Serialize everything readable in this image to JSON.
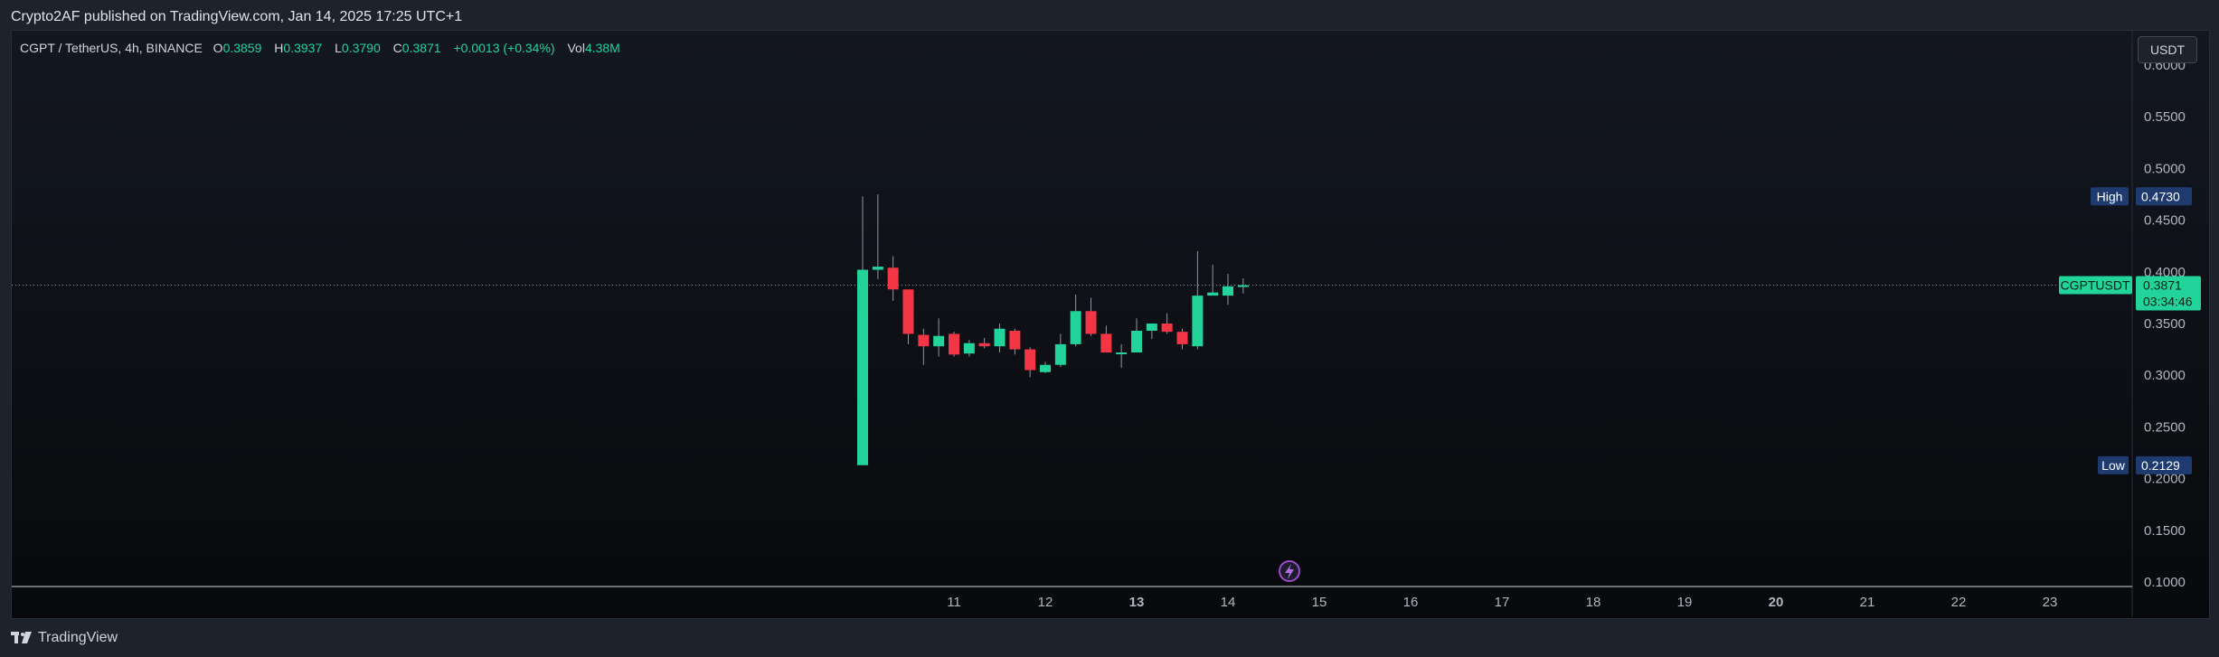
{
  "header": {
    "published": "Crypto2AF published on TradingView.com, Jan 14, 2025 17:25 UTC+1"
  },
  "legend": {
    "symbol": "CGPT / TetherUS, 4h, BINANCE",
    "o_label": "O",
    "o_value": "0.3859",
    "h_label": "H",
    "h_value": "0.3937",
    "l_label": "L",
    "l_value": "0.3790",
    "c_label": "C",
    "c_value": "0.3871",
    "change": "+0.0013 (+0.34%)",
    "vol_label": "Vol",
    "vol_value": "4.38M"
  },
  "currency_button": "USDT",
  "footer": {
    "brand": "TradingView"
  },
  "colors": {
    "up": "#22d39a",
    "down": "#f23645",
    "axis_line": "#ffffff",
    "tag_blue": "#1e3a6e"
  },
  "chart_data": {
    "type": "candlestick",
    "price_axis": {
      "ticks": [
        "0.6000",
        "0.5500",
        "0.5000",
        "0.4500",
        "0.4000",
        "0.3500",
        "0.3000",
        "0.2500",
        "0.2000",
        "0.1500",
        "0.1000"
      ],
      "ylim": [
        0.1,
        0.6
      ]
    },
    "time_axis": {
      "labels": [
        "11",
        "12",
        "13",
        "14",
        "15",
        "16",
        "17",
        "18",
        "19",
        "20",
        "21",
        "22",
        "23"
      ],
      "bold_labels": [
        "13",
        "20"
      ]
    },
    "markers": {
      "high": {
        "label": "High",
        "value": "0.4730"
      },
      "low": {
        "label": "Low",
        "value": "0.2129"
      },
      "last": {
        "symbol": "CGPTUSDT",
        "value": "0.3871",
        "countdown": "03:34:46"
      }
    },
    "candles": [
      {
        "t": 10.0,
        "o": 0.213,
        "h": 0.473,
        "l": 0.213,
        "c": 0.402
      },
      {
        "t": 10.167,
        "o": 0.402,
        "h": 0.475,
        "l": 0.393,
        "c": 0.405
      },
      {
        "t": 10.333,
        "o": 0.404,
        "h": 0.415,
        "l": 0.372,
        "c": 0.383
      },
      {
        "t": 10.5,
        "o": 0.383,
        "h": 0.383,
        "l": 0.33,
        "c": 0.34
      },
      {
        "t": 10.667,
        "o": 0.339,
        "h": 0.345,
        "l": 0.31,
        "c": 0.328
      },
      {
        "t": 10.833,
        "o": 0.328,
        "h": 0.355,
        "l": 0.318,
        "c": 0.338
      },
      {
        "t": 11.0,
        "o": 0.34,
        "h": 0.342,
        "l": 0.318,
        "c": 0.32
      },
      {
        "t": 11.167,
        "o": 0.321,
        "h": 0.334,
        "l": 0.318,
        "c": 0.331
      },
      {
        "t": 11.333,
        "o": 0.331,
        "h": 0.336,
        "l": 0.326,
        "c": 0.328
      },
      {
        "t": 11.5,
        "o": 0.328,
        "h": 0.35,
        "l": 0.322,
        "c": 0.345
      },
      {
        "t": 11.667,
        "o": 0.343,
        "h": 0.345,
        "l": 0.32,
        "c": 0.325
      },
      {
        "t": 11.833,
        "o": 0.325,
        "h": 0.327,
        "l": 0.298,
        "c": 0.305
      },
      {
        "t": 12.0,
        "o": 0.303,
        "h": 0.313,
        "l": 0.302,
        "c": 0.31
      },
      {
        "t": 12.167,
        "o": 0.31,
        "h": 0.34,
        "l": 0.308,
        "c": 0.33
      },
      {
        "t": 12.333,
        "o": 0.33,
        "h": 0.378,
        "l": 0.328,
        "c": 0.362
      },
      {
        "t": 12.5,
        "o": 0.362,
        "h": 0.375,
        "l": 0.338,
        "c": 0.34
      },
      {
        "t": 12.667,
        "o": 0.34,
        "h": 0.348,
        "l": 0.322,
        "c": 0.322
      },
      {
        "t": 12.833,
        "o": 0.322,
        "h": 0.33,
        "l": 0.307,
        "c": 0.322
      },
      {
        "t": 13.0,
        "o": 0.322,
        "h": 0.355,
        "l": 0.322,
        "c": 0.343
      },
      {
        "t": 13.167,
        "o": 0.343,
        "h": 0.35,
        "l": 0.335,
        "c": 0.35
      },
      {
        "t": 13.333,
        "o": 0.35,
        "h": 0.36,
        "l": 0.34,
        "c": 0.342
      },
      {
        "t": 13.5,
        "o": 0.342,
        "h": 0.345,
        "l": 0.325,
        "c": 0.33
      },
      {
        "t": 13.667,
        "o": 0.328,
        "h": 0.42,
        "l": 0.325,
        "c": 0.377
      },
      {
        "t": 13.833,
        "o": 0.377,
        "h": 0.407,
        "l": 0.378,
        "c": 0.38
      },
      {
        "t": 14.0,
        "o": 0.377,
        "h": 0.398,
        "l": 0.368,
        "c": 0.386
      },
      {
        "t": 14.167,
        "o": 0.3859,
        "h": 0.3937,
        "l": 0.379,
        "c": 0.3871
      }
    ]
  }
}
